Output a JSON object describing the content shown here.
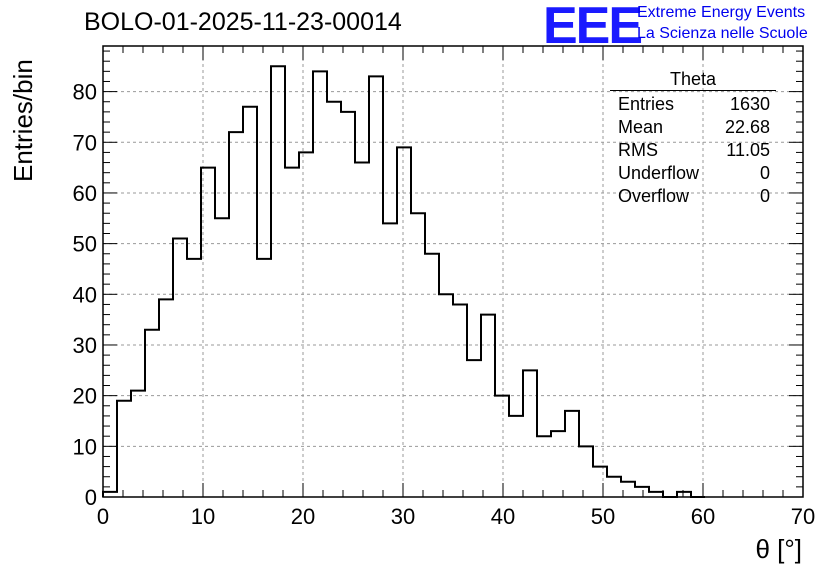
{
  "header": {
    "title": "BOLO-01-2025-11-23-00014",
    "logo_text": "EEE",
    "logo_line1": "Extreme Energy Events",
    "logo_line2": "La Scienza nelle Scuole"
  },
  "stats": {
    "title": "Theta",
    "rows": [
      {
        "label": "Entries",
        "value": "1630"
      },
      {
        "label": "Mean",
        "value": "22.68"
      },
      {
        "label": "RMS",
        "value": "11.05"
      },
      {
        "label": "Underflow",
        "value": "0"
      },
      {
        "label": "Overflow",
        "value": "0"
      }
    ]
  },
  "chart_data": {
    "type": "bar",
    "title": "BOLO-01-2025-11-23-00014",
    "xlabel": "θ [°]",
    "ylabel": "Entries/bin",
    "xlim": [
      0,
      70
    ],
    "ylim": [
      0,
      89
    ],
    "bin_width": 1.4,
    "xticks": [
      0,
      10,
      20,
      30,
      40,
      50,
      60,
      70
    ],
    "yticks": [
      0,
      10,
      20,
      30,
      40,
      50,
      60,
      70,
      80
    ],
    "grid": true,
    "bin_edges": [
      0,
      1.4,
      2.8,
      4.2,
      5.6,
      7.0,
      8.4,
      9.8,
      11.2,
      12.6,
      14.0,
      15.4,
      16.8,
      18.2,
      19.6,
      21.0,
      22.4,
      23.8,
      25.2,
      26.6,
      28.0,
      29.4,
      30.8,
      32.2,
      33.6,
      35.0,
      36.4,
      37.8,
      39.2,
      40.6,
      42.0,
      43.4,
      44.8,
      46.2,
      47.6,
      49.0,
      50.4,
      51.8,
      53.2,
      54.6,
      56.0,
      57.4,
      58.8,
      60.2
    ],
    "values": [
      1,
      19,
      21,
      33,
      39,
      51,
      47,
      65,
      55,
      72,
      77,
      47,
      85,
      65,
      68,
      84,
      78,
      76,
      66,
      83,
      54,
      69,
      56,
      48,
      40,
      38,
      27,
      36,
      20,
      16,
      25,
      12,
      13,
      17,
      10,
      6,
      4,
      3,
      2,
      1,
      0,
      1,
      0
    ]
  }
}
